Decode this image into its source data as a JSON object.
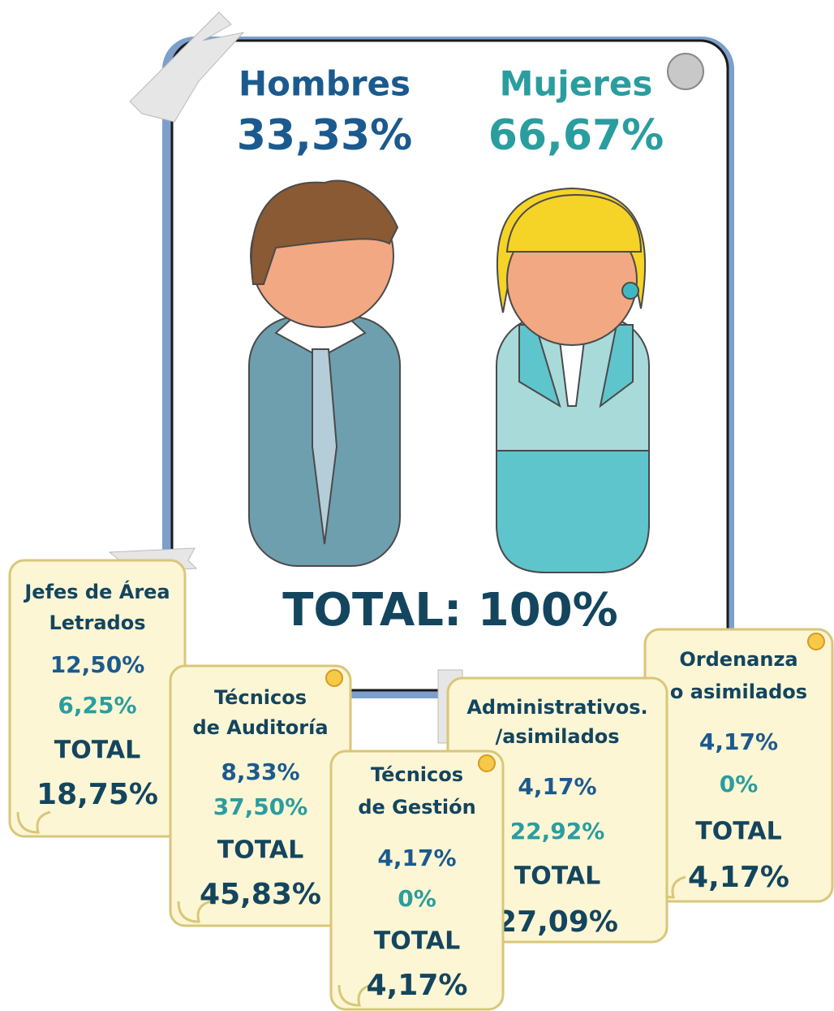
{
  "men": {
    "label": "Hombres",
    "percent": "33,33%"
  },
  "women": {
    "label": "Mujeres",
    "percent": "66,67%"
  },
  "total": "TOTAL: 100%",
  "cards": [
    {
      "title": [
        "Jefes de Área",
        "Letrados"
      ],
      "men": "12,50%",
      "women": "6,25%",
      "total_label": "TOTAL",
      "total": "18,75%"
    },
    {
      "title": [
        "Técnicos",
        "de Auditoría"
      ],
      "men": "8,33%",
      "women": "37,50%",
      "total_label": "TOTAL",
      "total": "45,83%"
    },
    {
      "title": [
        "Técnicos",
        "de Gestión"
      ],
      "men": "4,17%",
      "women": "0%",
      "total_label": "TOTAL",
      "total": "4,17%"
    },
    {
      "title": [
        "Administrativos.",
        "/asimilados"
      ],
      "men": "4,17%",
      "women": "22,92%",
      "total_label": "TOTAL",
      "total": "27,09%"
    },
    {
      "title": [
        "Ordenanza",
        "o asimilados"
      ],
      "men": "4,17%",
      "women": "0%",
      "total_label": "TOTAL",
      "total": "4,17%"
    }
  ]
}
